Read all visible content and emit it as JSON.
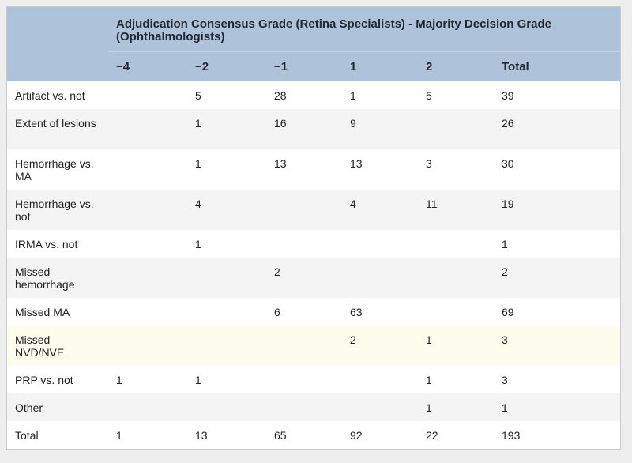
{
  "table": {
    "group_header": "Adjudication Consensus Grade (Retina Specialists) - Majority Decision Grade (Ophthalmologists)",
    "column_headers": [
      "−4",
      "−2",
      "−1",
      "1",
      "2",
      "Total"
    ],
    "rows": [
      {
        "label": "Artifact vs. not",
        "cells": [
          "",
          "5",
          "28",
          "1",
          "5",
          "39"
        ]
      },
      {
        "label": "Extent of lesions",
        "cells": [
          "",
          "1",
          "16",
          "9",
          "",
          "26"
        ]
      },
      {
        "label": "Hemorrhage vs. MA",
        "cells": [
          "",
          "1",
          "13",
          "13",
          "3",
          "30"
        ]
      },
      {
        "label": "Hemorrhage vs. not",
        "cells": [
          "",
          "4",
          "",
          "4",
          "11",
          "19"
        ]
      },
      {
        "label": "IRMA vs. not",
        "cells": [
          "",
          "1",
          "",
          "",
          "",
          "1"
        ]
      },
      {
        "label": "Missed hemorrhage",
        "cells": [
          "",
          "",
          "2",
          "",
          "",
          "2"
        ]
      },
      {
        "label": "Missed MA",
        "cells": [
          "",
          "",
          "6",
          "63",
          "",
          "69"
        ]
      },
      {
        "label": "Missed NVD/NVE",
        "cells": [
          "",
          "",
          "",
          "2",
          "1",
          "3"
        ]
      },
      {
        "label": "PRP vs. not",
        "cells": [
          "1",
          "1",
          "",
          "",
          "1",
          "3"
        ]
      },
      {
        "label": "Other",
        "cells": [
          "",
          "",
          "",
          "",
          "1",
          "1"
        ]
      },
      {
        "label": "Total",
        "cells": [
          "1",
          "13",
          "65",
          "92",
          "22",
          "193"
        ]
      }
    ]
  },
  "colors": {
    "header_bg": "#aec2da",
    "stripe_gray": "#f4f4f4",
    "highlight_row": "#fdfdee"
  }
}
